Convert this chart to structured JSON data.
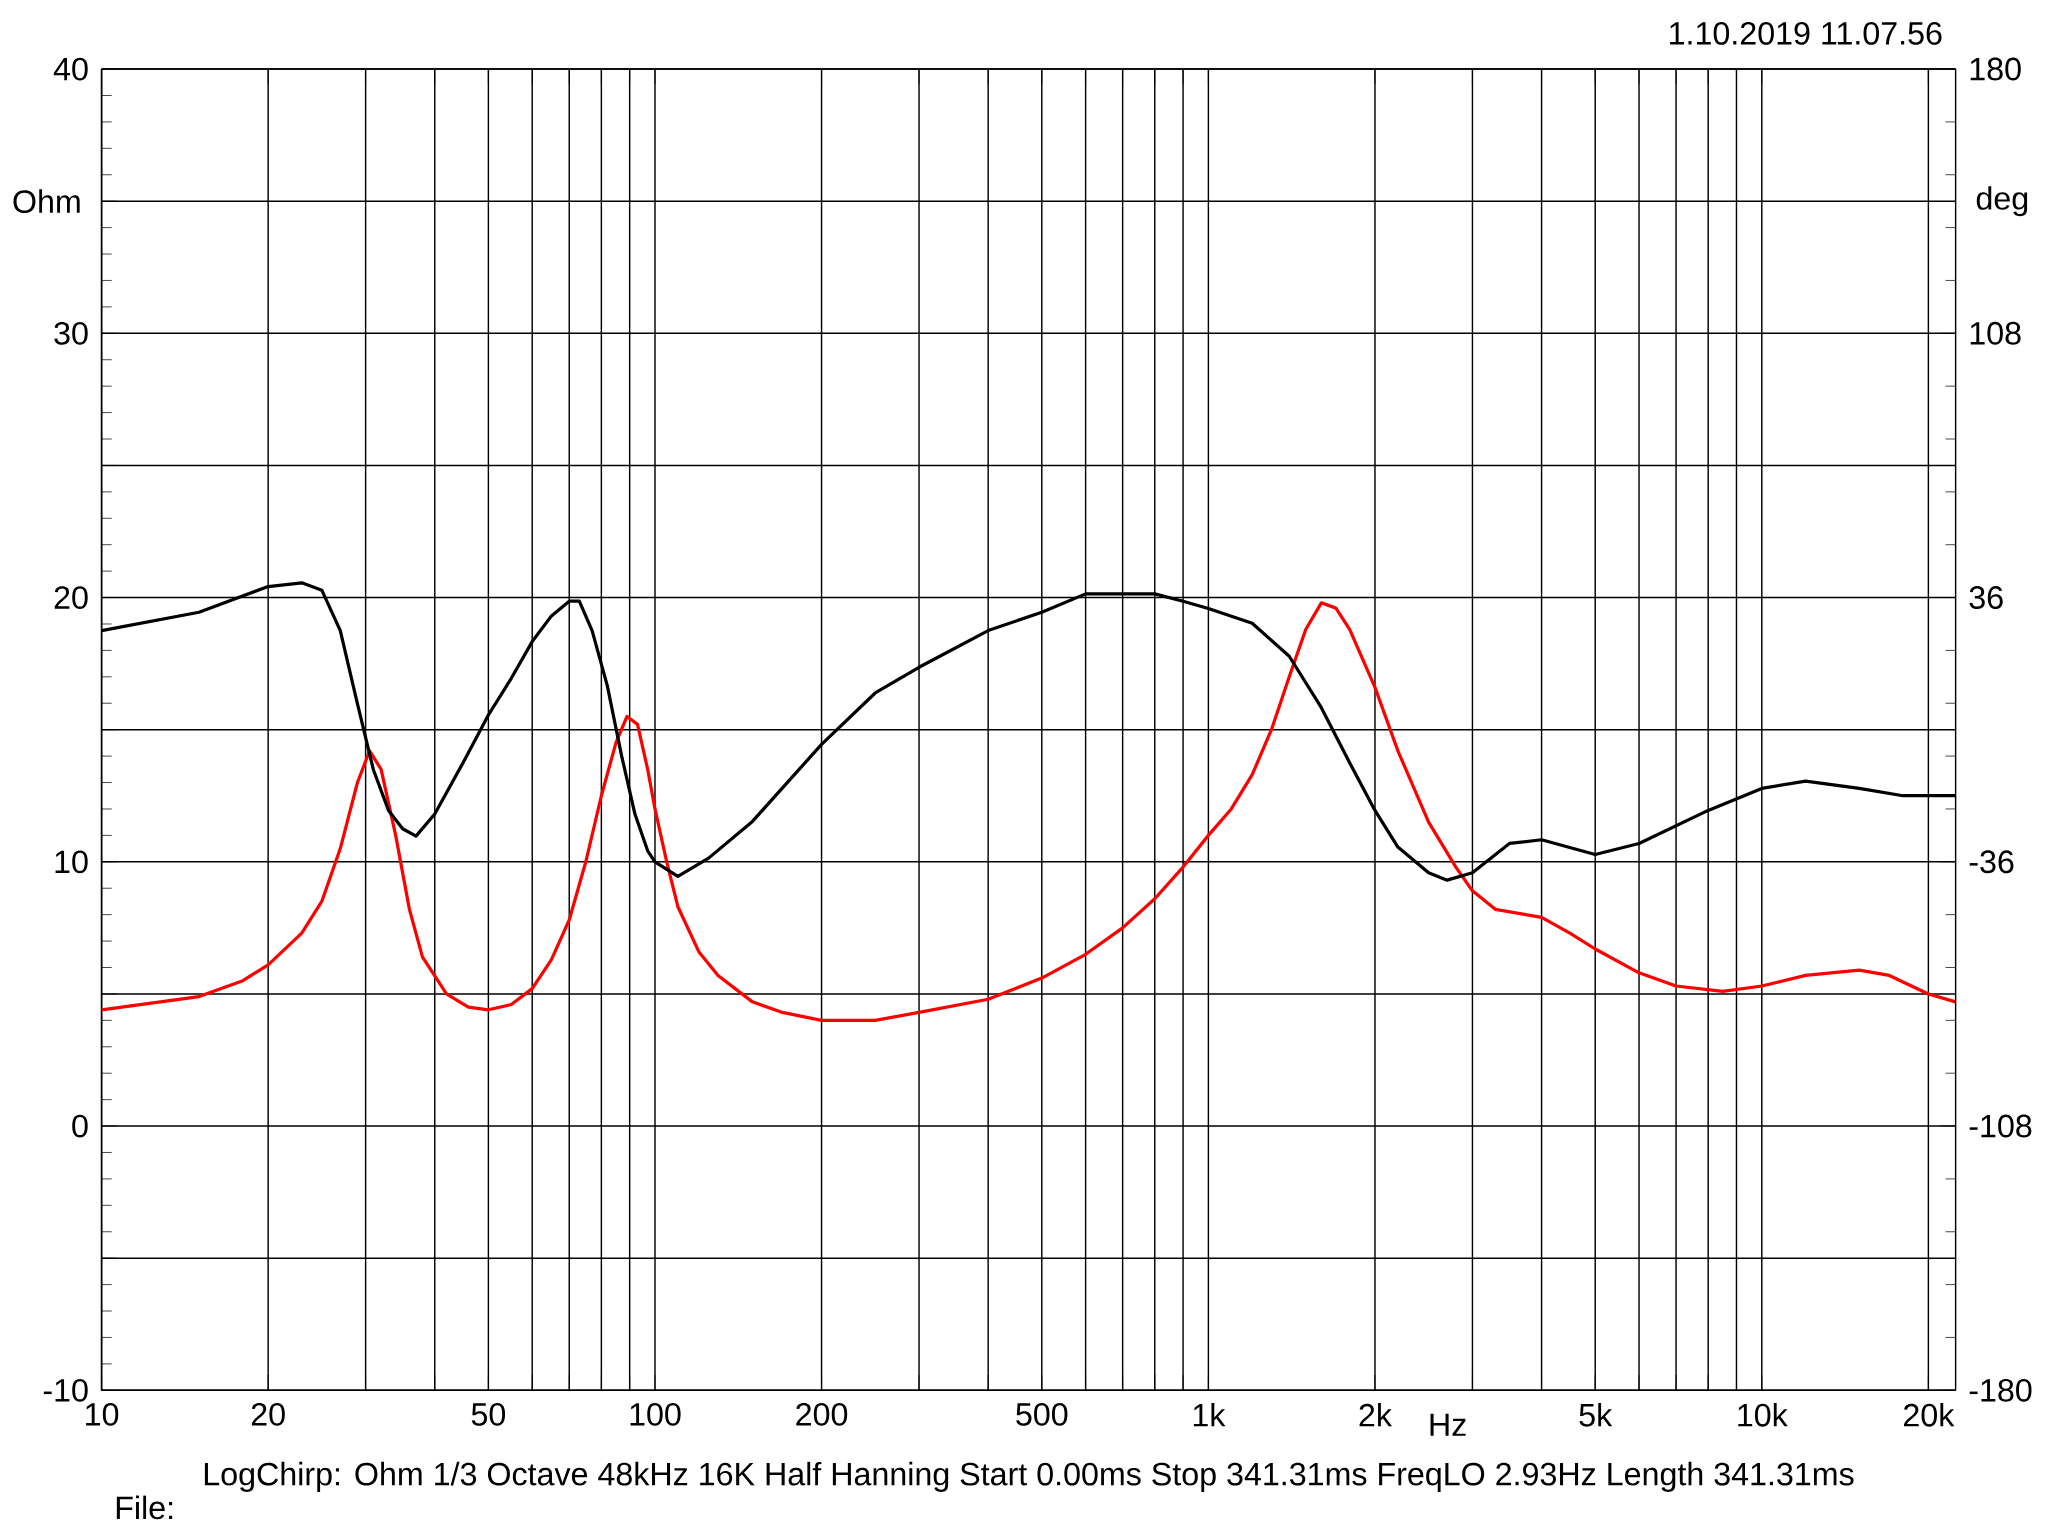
{
  "chart_data": {
    "type": "line",
    "xlabel": "Hz",
    "ylabel": "Ohm",
    "y2label": "deg",
    "log": "x",
    "grid": true,
    "legend": false,
    "marker": "none",
    "line_style": "solid",
    "xlim": [
      10,
      22400
    ],
    "ylim": [
      -10,
      40
    ],
    "y2lim": [
      -180,
      180
    ],
    "xticks": [
      {
        "value": 10,
        "label": "10"
      },
      {
        "value": 20,
        "label": "20"
      },
      {
        "value": 30,
        "label": null
      },
      {
        "value": 40,
        "label": null
      },
      {
        "value": 50,
        "label": "50"
      },
      {
        "value": 60,
        "label": null
      },
      {
        "value": 70,
        "label": null
      },
      {
        "value": 80,
        "label": null
      },
      {
        "value": 90,
        "label": null
      },
      {
        "value": 100,
        "label": "100"
      },
      {
        "value": 200,
        "label": "200"
      },
      {
        "value": 300,
        "label": null
      },
      {
        "value": 400,
        "label": null
      },
      {
        "value": 500,
        "label": "500"
      },
      {
        "value": 600,
        "label": null
      },
      {
        "value": 700,
        "label": null
      },
      {
        "value": 800,
        "label": null
      },
      {
        "value": 900,
        "label": null
      },
      {
        "value": 1000,
        "label": "1k"
      },
      {
        "value": 2000,
        "label": "2k"
      },
      {
        "value": 3000,
        "label": null
      },
      {
        "value": 4000,
        "label": null
      },
      {
        "value": 5000,
        "label": "5k"
      },
      {
        "value": 6000,
        "label": null
      },
      {
        "value": 7000,
        "label": null
      },
      {
        "value": 8000,
        "label": null
      },
      {
        "value": 9000,
        "label": null
      },
      {
        "value": 10000,
        "label": "10k"
      },
      {
        "value": 20000,
        "label": "20k"
      }
    ],
    "yticks": [
      -10,
      {
        "value": -5,
        "label": null
      },
      0,
      {
        "value": 5,
        "label": null
      },
      10,
      {
        "value": 15,
        "label": null
      },
      20,
      {
        "value": 25,
        "label": null
      },
      30,
      {
        "value": 35,
        "label": null
      },
      40
    ],
    "y2ticks": [
      -180,
      -108,
      -36,
      36,
      108,
      180
    ],
    "series": [
      {
        "color": "#ff0000",
        "x": [
          10,
          15,
          18,
          20,
          23,
          25,
          27,
          29,
          30.5,
          32,
          34,
          36,
          38,
          42,
          46,
          50,
          55,
          60,
          65,
          70,
          75,
          80,
          85,
          89,
          93,
          97,
          100,
          105,
          110,
          120,
          130,
          150,
          170,
          200,
          250,
          300,
          400,
          500,
          600,
          700,
          800,
          900,
          1000,
          1100,
          1200,
          1300,
          1400,
          1500,
          1600,
          1700,
          1800,
          2000,
          2200,
          2500,
          2800,
          3000,
          3300,
          4000,
          4500,
          5000,
          6000,
          7000,
          8500,
          10000,
          12000,
          15000,
          17000,
          20000,
          22400
        ],
        "values": [
          4.4,
          4.9,
          5.5,
          6.1,
          7.3,
          8.5,
          10.5,
          13.0,
          14.2,
          13.5,
          11.0,
          8.2,
          6.4,
          5.0,
          4.5,
          4.4,
          4.6,
          5.2,
          6.3,
          7.8,
          10.0,
          12.5,
          14.5,
          15.5,
          15.2,
          13.5,
          12.0,
          10.0,
          8.3,
          6.6,
          5.7,
          4.7,
          4.3,
          4.0,
          4.0,
          4.3,
          4.8,
          5.6,
          6.5,
          7.5,
          8.6,
          9.8,
          11.0,
          12.0,
          13.3,
          15.0,
          17.0,
          18.8,
          19.8,
          19.6,
          18.8,
          16.6,
          14.2,
          11.5,
          9.8,
          8.9,
          8.2,
          7.9,
          7.3,
          6.7,
          5.8,
          5.3,
          5.1,
          5.3,
          5.7,
          5.9,
          5.7,
          5.0,
          4.7
        ]
      },
      {
        "color": "#000000",
        "axis": "y2",
        "x": [
          10,
          15,
          20,
          23,
          25,
          27,
          29,
          31,
          33,
          35,
          37,
          40,
          45,
          50,
          55,
          60,
          65,
          70,
          73,
          77,
          82,
          87,
          92,
          97,
          100,
          110,
          125,
          150,
          200,
          250,
          300,
          400,
          500,
          600,
          700,
          800,
          900,
          1000,
          1200,
          1400,
          1600,
          1800,
          2000,
          2200,
          2500,
          2700,
          3000,
          3500,
          4000,
          5000,
          6000,
          8000,
          10000,
          12000,
          15000,
          18000,
          22400
        ],
        "values": [
          27,
          32,
          39,
          40,
          38,
          27,
          7,
          -11,
          -22,
          -27,
          -29,
          -23,
          -9,
          4,
          14,
          24,
          31,
          35,
          35,
          27,
          12,
          -7,
          -23,
          -33,
          -36,
          -40,
          -35,
          -25,
          -4,
          10,
          17,
          27,
          32,
          37,
          37,
          37,
          35,
          33,
          29,
          20,
          6,
          -9,
          -22,
          -32,
          -39,
          -41,
          -39,
          -31,
          -30,
          -34,
          -31,
          -22,
          -16,
          -14,
          -16,
          -18,
          -18
        ]
      }
    ],
    "annotations": [
      "1.10.2019 11.07.56",
      "LogChirp:  Ohm   1/3 Octave   48kHz   16K   Half Hanning   Start 0.00ms   Stop 341.31ms   FreqLO 2.93Hz   Length 341.31ms",
      "File:"
    ]
  }
}
